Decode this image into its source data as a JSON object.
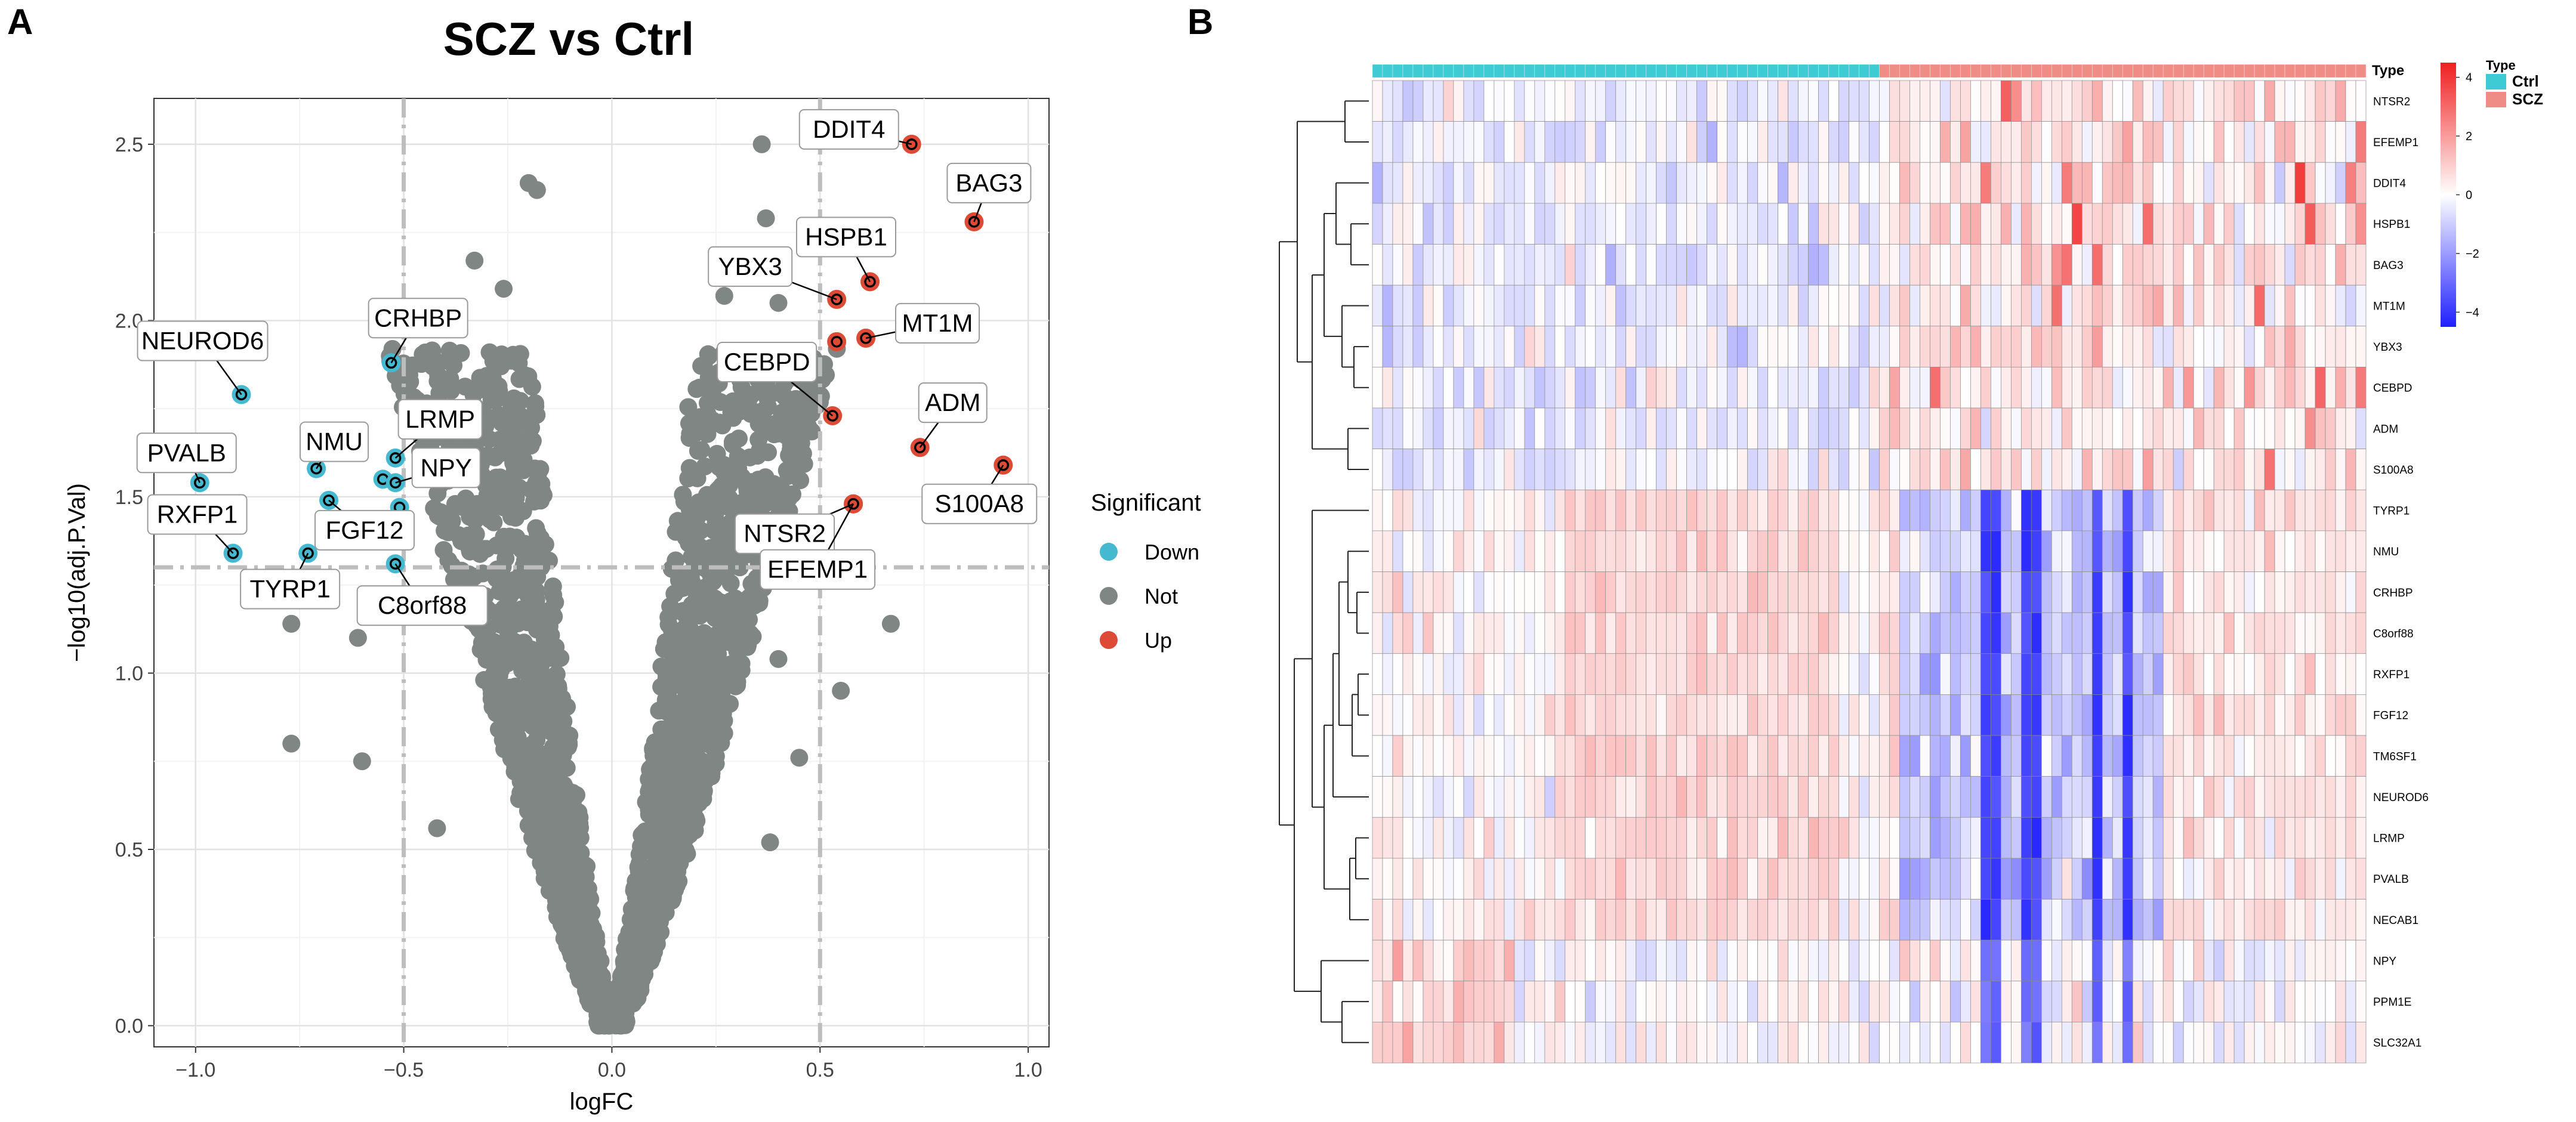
{
  "panels": {
    "a_label": "A",
    "b_label": "B"
  },
  "chart_data": [
    {
      "type": "scatter",
      "title": "SCZ vs Ctrl",
      "xlabel": "logFC",
      "ylabel": "−log10(adj.P.Val)",
      "xlim": [
        -1.1,
        1.05
      ],
      "ylim": [
        -0.06,
        2.63
      ],
      "xticks": [
        -1.0,
        -0.5,
        0.0,
        0.5,
        1.0
      ],
      "xtick_labels": [
        "−1.0",
        "−0.5",
        "0.0",
        "0.5",
        "1.0"
      ],
      "yticks": [
        0.0,
        0.5,
        1.0,
        1.5,
        2.0,
        2.5
      ],
      "ytick_labels": [
        "0.0",
        "0.5",
        "1.0",
        "1.5",
        "2.0",
        "2.5"
      ],
      "thresholds": {
        "logfc": [
          -0.5,
          0.5
        ],
        "neglog10p": 1.3
      },
      "legend": {
        "title": "Significant",
        "position": "right",
        "entries": [
          {
            "label": "Down",
            "color": "#46b8cf"
          },
          {
            "label": "Not",
            "color": "#7f8684"
          },
          {
            "label": "Up",
            "color": "#dd4a36"
          }
        ]
      },
      "colors": {
        "down": "#46b8cf",
        "not": "#7f8684",
        "up": "#dd4a36"
      },
      "highlighted": [
        {
          "gene": "DDIT4",
          "x": 0.72,
          "y": 2.5,
          "group": "up"
        },
        {
          "gene": "BAG3",
          "x": 0.87,
          "y": 2.28,
          "group": "up"
        },
        {
          "gene": "HSPB1",
          "x": 0.62,
          "y": 2.11,
          "group": "up"
        },
        {
          "gene": "YBX3",
          "x": 0.54,
          "y": 2.06,
          "group": "up"
        },
        {
          "gene": "MT1M",
          "x": 0.61,
          "y": 1.95,
          "group": "up"
        },
        {
          "gene": "",
          "x": 0.54,
          "y": 1.94,
          "group": "up"
        },
        {
          "gene": "CEBPD",
          "x": 0.53,
          "y": 1.73,
          "group": "up"
        },
        {
          "gene": "ADM",
          "x": 0.74,
          "y": 1.64,
          "group": "up"
        },
        {
          "gene": "NTSR2",
          "x": 0.58,
          "y": 1.48,
          "group": "up"
        },
        {
          "gene": "S100A8",
          "x": 0.94,
          "y": 1.59,
          "group": "up"
        },
        {
          "gene": "EFEMP1",
          "x": 0.58,
          "y": 1.48,
          "group": "up"
        },
        {
          "gene": "NEUROD6",
          "x": -0.89,
          "y": 1.79,
          "group": "down"
        },
        {
          "gene": "CRHBP",
          "x": -0.53,
          "y": 1.88,
          "group": "down"
        },
        {
          "gene": "NMU",
          "x": -0.71,
          "y": 1.58,
          "group": "down"
        },
        {
          "gene": "LRMP",
          "x": -0.52,
          "y": 1.61,
          "group": "down"
        },
        {
          "gene": "",
          "x": -0.55,
          "y": 1.55,
          "group": "down"
        },
        {
          "gene": "NPY",
          "x": -0.52,
          "y": 1.54,
          "group": "down"
        },
        {
          "gene": "",
          "x": -0.51,
          "y": 1.47,
          "group": "down"
        },
        {
          "gene": "PVALB",
          "x": -0.99,
          "y": 1.54,
          "group": "down"
        },
        {
          "gene": "FGF12",
          "x": -0.68,
          "y": 1.49,
          "group": "down"
        },
        {
          "gene": "RXFP1",
          "x": -0.91,
          "y": 1.34,
          "group": "down"
        },
        {
          "gene": "TYRP1",
          "x": -0.73,
          "y": 1.34,
          "group": "down"
        },
        {
          "gene": "C8orf88",
          "x": -0.52,
          "y": 1.31,
          "group": "down"
        }
      ],
      "background_points": {
        "description": "approx. 2000 non-significant genes forming a V-shaped volcano cloud around logFC 0",
        "outliers": [
          [
            -0.2,
            2.39
          ],
          [
            -0.18,
            2.37
          ],
          [
            -0.33,
            2.17
          ],
          [
            0.36,
            2.5
          ],
          [
            0.37,
            2.29
          ],
          [
            0.3,
            2.17
          ],
          [
            0.4,
            2.05
          ],
          [
            0.27,
            2.07
          ],
          [
            -0.26,
            2.09
          ],
          [
            -0.51,
            1.84
          ],
          [
            -0.77,
            0.8
          ],
          [
            -0.6,
            0.75
          ],
          [
            -0.72,
            1.22
          ],
          [
            -0.77,
            1.14
          ],
          [
            -0.56,
            1.17
          ],
          [
            -0.61,
            1.1
          ],
          [
            0.67,
            1.14
          ],
          [
            0.45,
            0.76
          ],
          [
            0.38,
            0.52
          ],
          [
            -0.42,
            0.56
          ],
          [
            0.55,
            0.95
          ],
          [
            0.4,
            1.04
          ]
        ]
      }
    },
    {
      "type": "heatmap",
      "column_annotation_label": "Type",
      "annotation": {
        "title": "Type",
        "groups": [
          {
            "label": "Ctrl",
            "count": 50,
            "color": "#3ecbd3"
          },
          {
            "label": "SCZ",
            "count": 48,
            "color": "#f08c86"
          }
        ]
      },
      "rows": [
        "NTSR2",
        "EFEMP1",
        "DDIT4",
        "HSPB1",
        "BAG3",
        "MT1M",
        "YBX3",
        "CEBPD",
        "ADM",
        "S100A8",
        "TYRP1",
        "NMU",
        "CRHBP",
        "C8orf88",
        "RXFP1",
        "FGF12",
        "TM6SF1",
        "NEUROD6",
        "LRMP",
        "PVALB",
        "NECAB1",
        "NPY",
        "PPM1E",
        "SLC32A1"
      ],
      "color_scale": {
        "min": -4.5,
        "max": 4.5,
        "ticks": [
          4,
          2,
          0,
          -2,
          -4
        ],
        "tick_labels": [
          "4",
          "2",
          "0",
          "−2",
          "−4"
        ],
        "low_color": "#1f1fff",
        "mid_color": "#ffffff",
        "high_color": "#f01f1f"
      },
      "row_dendrogram": "two main clusters: up-regulated genes (NTSR2..S100A8) and down-regulated genes (TYRP1..SLC32A1)",
      "pattern": "Up-regulated genes are mostly blue in Ctrl columns and red in SCZ columns; down-regulated genes are red in Ctrl and blue in a subset of SCZ columns"
    }
  ]
}
